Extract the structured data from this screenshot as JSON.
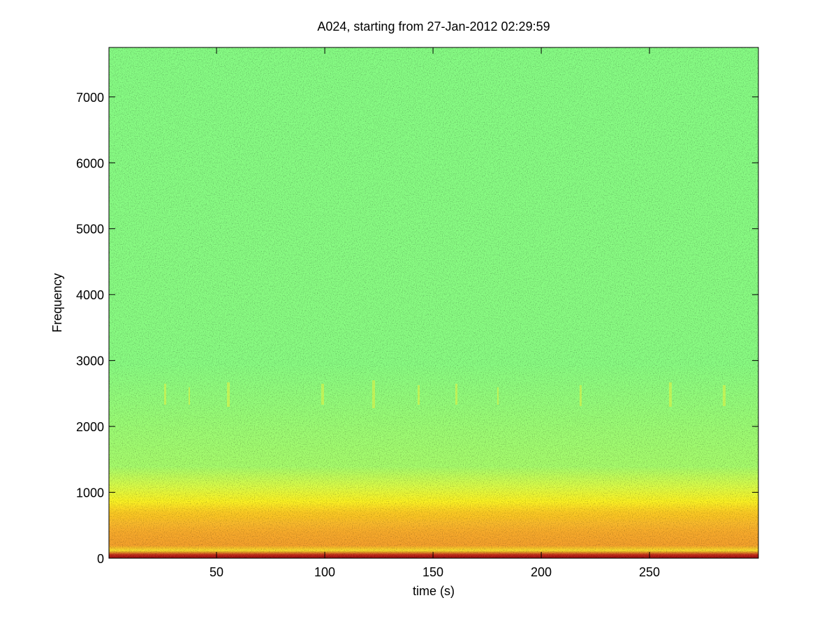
{
  "chart_data": {
    "type": "spectrogram",
    "title": "A024, starting from 27-Jan-2012 02:29:59",
    "x_label": "time (s)",
    "y_label": "Frequency",
    "xlim": [
      0.3,
      300.3
    ],
    "xticks": [
      50,
      100,
      150,
      200,
      250
    ],
    "ylim": [
      0,
      7750
    ],
    "yticks": [
      0,
      1000,
      2000,
      3000,
      4000,
      5000,
      6000,
      7000
    ]
  }
}
